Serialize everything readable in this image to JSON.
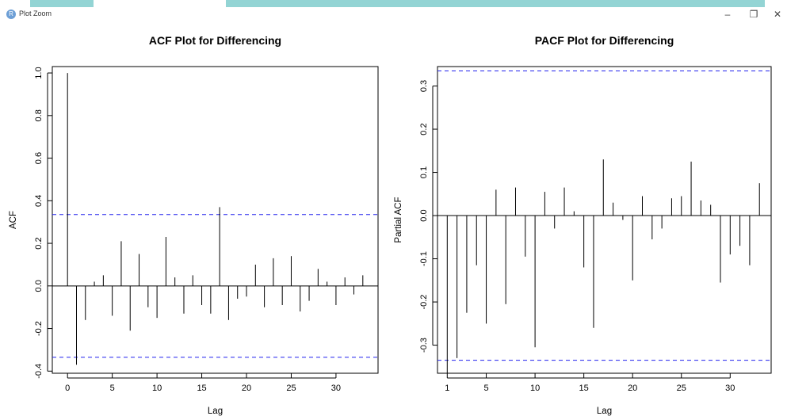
{
  "window": {
    "title": "Plot Zoom",
    "app_badge": "R",
    "minimize": "–",
    "restore": "❐",
    "close": "✕"
  },
  "chart_data": [
    {
      "type": "bar",
      "title": "ACF Plot for Differencing",
      "xlabel": "Lag",
      "ylabel": "ACF",
      "xlim": [
        -1.7,
        34.7
      ],
      "ylim": [
        -0.41,
        1.03
      ],
      "xticks": [
        0,
        5,
        10,
        15,
        20,
        25,
        30
      ],
      "yticks": [
        -0.4,
        -0.2,
        0.0,
        0.2,
        0.4,
        0.6,
        0.8,
        1.0
      ],
      "ytick_labels": [
        "-0.4",
        "-0.2",
        "0.0",
        "0.2",
        "0.4",
        "0.6",
        "0.8",
        "1.0"
      ],
      "confidence_bound": 0.335,
      "bound_color": "#2222ee",
      "lags": [
        0,
        1,
        2,
        3,
        4,
        5,
        6,
        7,
        8,
        9,
        10,
        11,
        12,
        13,
        14,
        15,
        16,
        17,
        18,
        19,
        20,
        21,
        22,
        23,
        24,
        25,
        26,
        27,
        28,
        29,
        30,
        31,
        32,
        33
      ],
      "values": [
        1.0,
        -0.37,
        -0.16,
        0.02,
        0.05,
        -0.14,
        0.21,
        -0.21,
        0.15,
        -0.1,
        -0.15,
        0.23,
        0.04,
        -0.13,
        0.05,
        -0.09,
        -0.13,
        0.37,
        -0.16,
        -0.06,
        -0.05,
        0.1,
        -0.1,
        0.13,
        -0.09,
        0.14,
        -0.12,
        -0.07,
        0.08,
        0.02,
        -0.09,
        0.04,
        -0.04,
        0.05
      ]
    },
    {
      "type": "bar",
      "title": "PACF Plot for Differencing",
      "xlabel": "Lag",
      "ylabel": "Partial ACF",
      "xlim": [
        0.0,
        34.2
      ],
      "ylim": [
        -0.365,
        0.345
      ],
      "xticks": [
        1,
        5,
        10,
        15,
        20,
        25,
        30
      ],
      "yticks": [
        -0.3,
        -0.2,
        -0.1,
        0.0,
        0.1,
        0.2,
        0.3
      ],
      "ytick_labels": [
        "-0.3",
        "-0.2",
        "-0.1",
        "0.0",
        "0.1",
        "0.2",
        "0.3"
      ],
      "confidence_bound": 0.335,
      "bound_color": "#2222ee",
      "lags": [
        1,
        2,
        3,
        4,
        5,
        6,
        7,
        8,
        9,
        10,
        11,
        12,
        13,
        14,
        15,
        16,
        17,
        18,
        19,
        20,
        21,
        22,
        23,
        24,
        25,
        26,
        27,
        28,
        29,
        30,
        31,
        32,
        33
      ],
      "values": [
        -0.365,
        -0.33,
        -0.225,
        -0.115,
        -0.25,
        0.06,
        -0.205,
        0.065,
        -0.095,
        -0.305,
        0.055,
        -0.03,
        0.065,
        0.01,
        -0.12,
        -0.26,
        0.13,
        0.03,
        -0.01,
        -0.15,
        0.045,
        -0.055,
        -0.03,
        0.04,
        0.045,
        0.125,
        0.035,
        0.025,
        -0.155,
        -0.09,
        -0.07,
        -0.115,
        0.075
      ]
    }
  ]
}
